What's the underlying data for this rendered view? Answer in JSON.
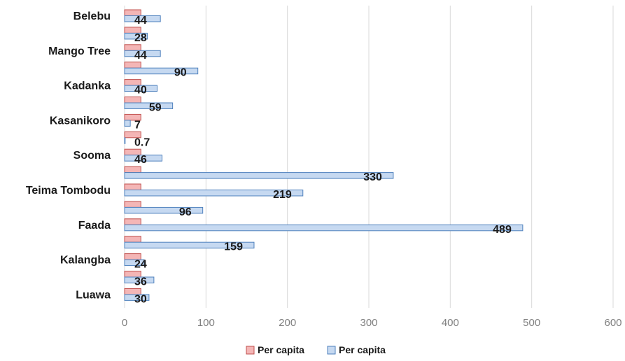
{
  "chart_data": {
    "type": "bar",
    "orientation": "horizontal",
    "categories": [
      "Belebu",
      "",
      "Mango Tree",
      "",
      "Kadanka",
      "",
      "Kasanikoro",
      "",
      "Sooma",
      "",
      "Teima Tombodu",
      "",
      "Faada",
      "",
      "Kalangba",
      "",
      "Luawa"
    ],
    "series": [
      {
        "name": "Per capita",
        "color": "#f4b6b6",
        "stroke": "#c0504d",
        "values": [
          20,
          20,
          20,
          20,
          20,
          20,
          20,
          20,
          20,
          20,
          20,
          20,
          20,
          20,
          20,
          20,
          20
        ]
      },
      {
        "name": "Per capita",
        "color": "#c6d9f1",
        "stroke": "#4f81bd",
        "values": [
          44,
          28,
          44,
          90,
          40,
          59,
          7,
          0.7,
          46,
          330,
          219,
          96,
          489,
          159,
          24,
          36,
          30
        ],
        "data_labels": [
          "44",
          "28",
          "44",
          "90",
          "40",
          "59",
          "7",
          "0.7",
          "46",
          "330",
          "219",
          "96",
          "489",
          "159",
          "24",
          "36",
          "30"
        ]
      }
    ],
    "xlim": [
      0,
      600
    ],
    "xticks": [
      "0",
      "100",
      "200",
      "300",
      "400",
      "500",
      "600"
    ],
    "grid": true,
    "legend": "bottom",
    "title": "",
    "xlabel": "",
    "ylabel": ""
  }
}
